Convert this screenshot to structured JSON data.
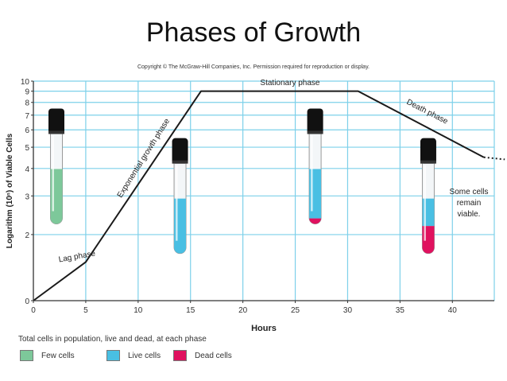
{
  "slide_title": "Phases of Growth",
  "copyright": "Copyright © The McGraw-Hill Companies, Inc. Permission required for reproduction or display.",
  "colors": {
    "grid": "#7dd0ea",
    "curve": "#1a1a1a",
    "few_cells": "#7dc89a",
    "live_cells": "#49bfe3",
    "dead_cells": "#e0115f",
    "tube_cap": "#111111"
  },
  "chart_data": {
    "type": "line",
    "xlabel": "Hours",
    "ylabel": "Logarithm (10ⁿ) of Viable Cells",
    "x_ticks": [
      "0",
      "5",
      "10",
      "15",
      "20",
      "25",
      "30",
      "35",
      "40"
    ],
    "y_ticks": [
      "0",
      "2",
      "3",
      "4",
      "5",
      "6",
      "7",
      "8",
      "9",
      "10"
    ],
    "xlim": [
      0,
      44
    ],
    "ylim": [
      0,
      10
    ],
    "y_scale": "logarithmic",
    "series": [
      {
        "name": "Growth curve",
        "x": [
          0,
          5,
          16,
          31,
          43
        ],
        "y": [
          1.0,
          1.5,
          9.0,
          9.0,
          4.5
        ]
      },
      {
        "name": "Extrapolated",
        "style": "dotted",
        "x": [
          43,
          45
        ],
        "y": [
          4.5,
          4.4
        ]
      }
    ],
    "phases": [
      {
        "name": "Lag phase",
        "x": 4.2,
        "y": 1.55,
        "rotation": -10
      },
      {
        "name": "Exponential growth phase",
        "x": 10.7,
        "y": 4.4,
        "rotation": -58
      },
      {
        "name": "Stationary phase",
        "x": 24.5,
        "y": 9.6,
        "rotation": 0
      },
      {
        "name": "Death phase",
        "x": 37.5,
        "y": 7.1,
        "rotation": 27
      }
    ],
    "annotation": [
      "Some cells",
      "remain",
      "viable."
    ],
    "tubes": [
      {
        "x": 2.2,
        "top_y": 7.5,
        "fill": "few_cells",
        "fill_fraction": 0.6,
        "dead_fraction": 0
      },
      {
        "x": 14.0,
        "top_y": 5.5,
        "fill": "live_cells",
        "fill_fraction": 0.6,
        "dead_fraction": 0
      },
      {
        "x": 26.9,
        "top_y": 7.5,
        "fill": "live_cells",
        "fill_fraction": 0.6,
        "dead_fraction": 0.1
      },
      {
        "x": 37.7,
        "top_y": 5.5,
        "fill": "live_cells",
        "fill_fraction": 0.6,
        "dead_fraction": 0.5
      }
    ],
    "legend": {
      "title": "Total cells in population, live and dead, at each phase",
      "items": [
        {
          "label": "Few cells",
          "color": "few_cells"
        },
        {
          "label": "Live cells",
          "color": "live_cells"
        },
        {
          "label": "Dead cells",
          "color": "dead_cells"
        }
      ]
    }
  }
}
